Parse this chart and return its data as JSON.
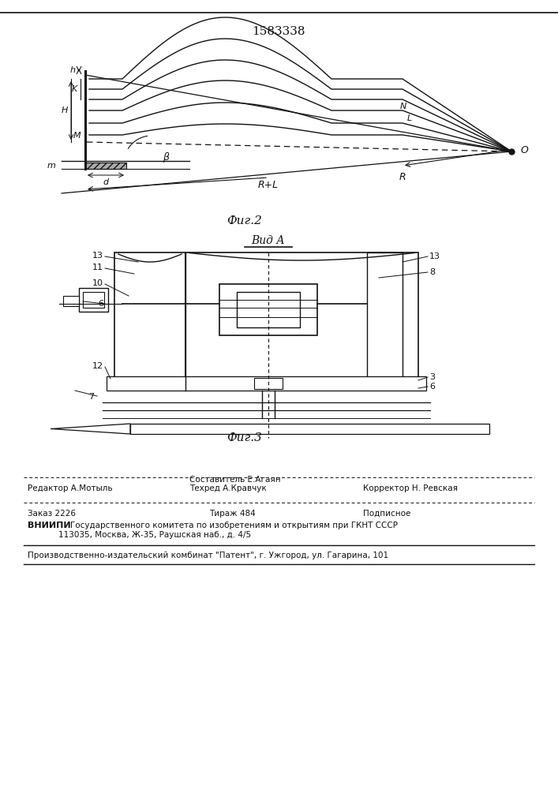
{
  "patent_number": "1583338",
  "fig2_caption": "Фиг.2",
  "fig3_caption": "Фиг.3",
  "vid_a_label": "Вид А",
  "footer_line1_col1": "Редактор А.Мотыль",
  "footer_sestavitel": "Составитель Е.Агаян",
  "footer_tekhred": "Техред А.Кравчук",
  "footer_line1_col3": "Корректор Н. Ревская",
  "footer_zakaz": "Заказ 2226",
  "footer_tirazh": "Тираж 484",
  "footer_podpisnoe": "Подписное",
  "footer_vnipi_bold": "ВНИИПИ",
  "footer_vnipi_text": "Государственного комитета по изобретениям и открытиям при ГКНТ СССР",
  "footer_vnipi_addr": "113035, Москва, Ж-35, Раушская наб., д. 4/5",
  "footer_patent": "Производственно-издательский комбинат \"Патент\", г. Ужгород, ул. Гагарина, 101",
  "lc": "#111111"
}
